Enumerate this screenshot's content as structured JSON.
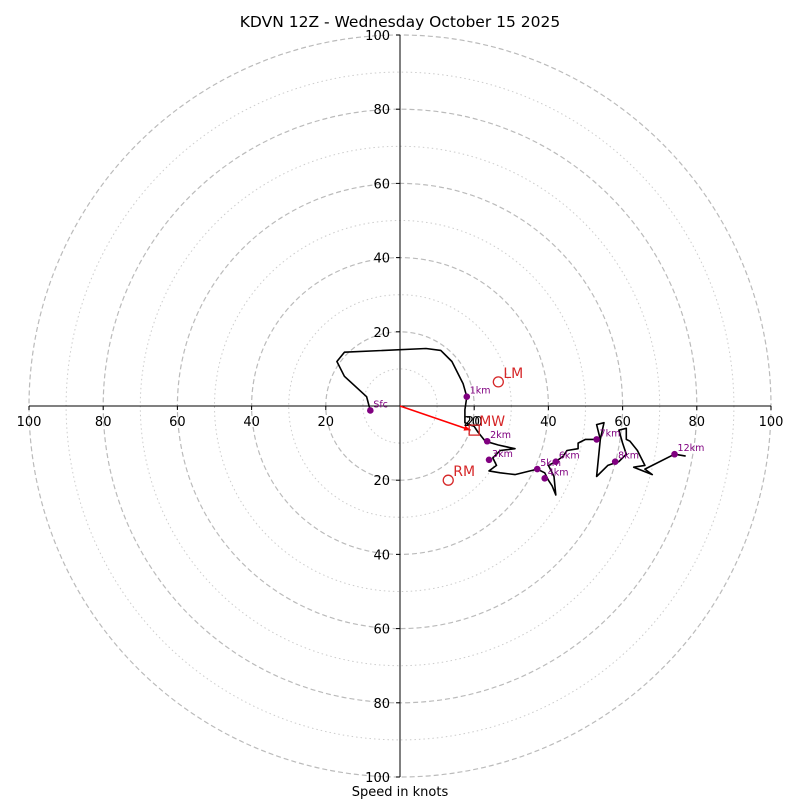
{
  "chart_data": {
    "type": "hodograph",
    "title": "KDVN 12Z - Wednesday October 15 2025",
    "xlabel": "Speed in knots",
    "range": [
      -100,
      100
    ],
    "major_rings": [
      20,
      40,
      60,
      80,
      100
    ],
    "minor_rings": [
      10,
      30,
      50,
      70,
      90
    ],
    "x_tick_labels": [
      "100",
      "80",
      "60",
      "40",
      "20",
      "20",
      "40",
      "60",
      "80",
      "100"
    ],
    "x_tick_values": [
      -100,
      -80,
      -60,
      -40,
      -20,
      20,
      40,
      60,
      80,
      100
    ],
    "y_tick_labels": [
      "100",
      "80",
      "60",
      "40",
      "20",
      "20",
      "40",
      "60",
      "80",
      "100"
    ],
    "y_tick_values": [
      100,
      80,
      60,
      40,
      20,
      -20,
      -40,
      -60,
      -80,
      -100
    ],
    "trace": [
      [
        -8,
        -1.2
      ],
      [
        -9,
        2.5
      ],
      [
        -15,
        8
      ],
      [
        -17,
        12
      ],
      [
        -15,
        14.5
      ],
      [
        7,
        15.5
      ],
      [
        11,
        15
      ],
      [
        14,
        12
      ],
      [
        17,
        6
      ],
      [
        18,
        2.5
      ],
      [
        17.5,
        -1
      ],
      [
        17.5,
        -4.5
      ],
      [
        20,
        -5.5
      ],
      [
        21,
        -7
      ],
      [
        23,
        -9.5
      ],
      [
        26.5,
        -10.5
      ],
      [
        31,
        -11.5
      ],
      [
        27,
        -12
      ],
      [
        25,
        -14
      ],
      [
        26,
        -16
      ],
      [
        24,
        -17.5
      ],
      [
        27,
        -18
      ],
      [
        31,
        -18.5
      ],
      [
        37,
        -17
      ],
      [
        39,
        -18
      ],
      [
        40,
        -20
      ],
      [
        41,
        -21.5
      ],
      [
        42,
        -24
      ],
      [
        41.5,
        -19
      ],
      [
        40,
        -16
      ],
      [
        42,
        -15
      ],
      [
        44,
        -13.5
      ],
      [
        45,
        -12
      ],
      [
        48,
        -11.5
      ],
      [
        48,
        -10
      ],
      [
        50,
        -9
      ],
      [
        54,
        -9
      ],
      [
        53,
        -5
      ],
      [
        55,
        -4.5
      ],
      [
        54,
        -9
      ],
      [
        53,
        -19
      ],
      [
        56,
        -16
      ],
      [
        59,
        -15
      ],
      [
        61,
        -13
      ],
      [
        60,
        -10
      ],
      [
        59,
        -6.5
      ],
      [
        61,
        -6
      ],
      [
        61,
        -9
      ],
      [
        62,
        -9.5
      ],
      [
        64,
        -12
      ],
      [
        66,
        -16
      ],
      [
        63,
        -16.5
      ],
      [
        68,
        -18.5
      ],
      [
        66,
        -17
      ],
      [
        74,
        -13
      ],
      [
        77,
        -13.5
      ]
    ],
    "levels": [
      {
        "label": "Sfc",
        "u": -8,
        "v": -1.2
      },
      {
        "label": "1km",
        "u": 18,
        "v": 2.5
      },
      {
        "label": "2km",
        "u": 23.5,
        "v": -9.5
      },
      {
        "label": "3km",
        "u": 24,
        "v": -14.5
      },
      {
        "label": "4km",
        "u": 39,
        "v": -19.5
      },
      {
        "label": "5km",
        "u": 37,
        "v": -17
      },
      {
        "label": "6km",
        "u": 42,
        "v": -15
      },
      {
        "label": "7km",
        "u": 53,
        "v": -9
      },
      {
        "label": "8km",
        "u": 58,
        "v": -15
      },
      {
        "label": "12km",
        "u": 74,
        "v": -13
      }
    ],
    "storm_motion": {
      "RM": {
        "label": "RM",
        "u": 13,
        "v": -20
      },
      "LM": {
        "label": "LM",
        "u": 26.5,
        "v": 6.5
      },
      "MW": {
        "label": "MW",
        "u": 20,
        "v": -6.5
      },
      "shear_label": "20",
      "shear_vector": {
        "u": 19,
        "v": -6.5
      }
    },
    "colors": {
      "trace": "#000000",
      "level_marker": "#800080",
      "storm_motion": "#d62728",
      "shear_vector": "#ff0000",
      "major_grid": "#bbbbbb",
      "minor_grid": "#cccccc"
    }
  }
}
